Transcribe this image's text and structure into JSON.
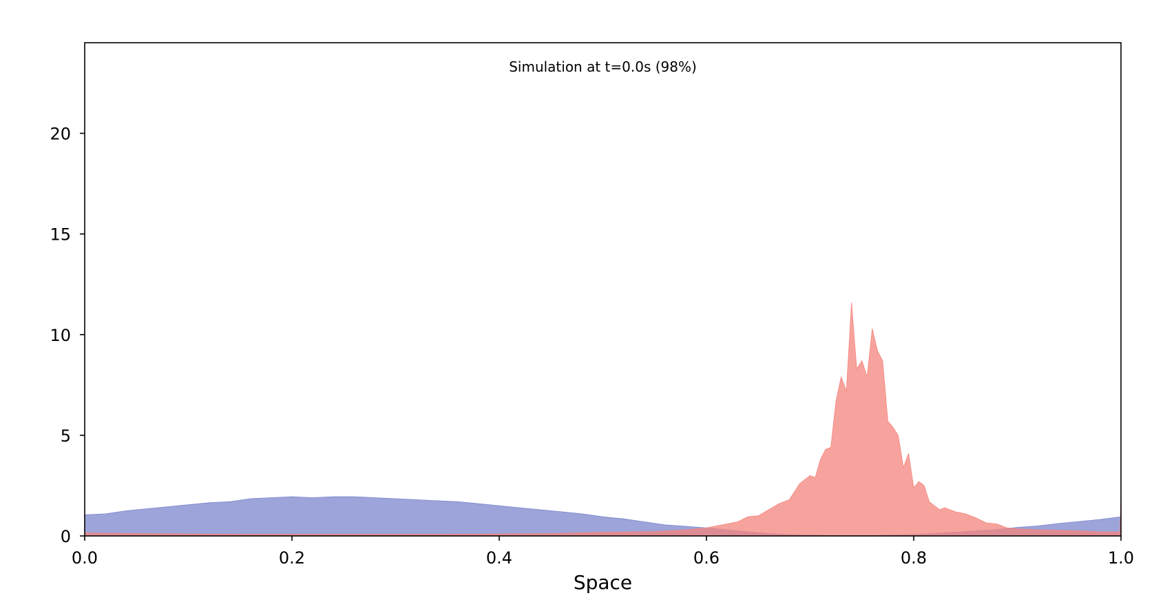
{
  "chart_data": {
    "type": "area",
    "title": "Simulation at t=0.0s (98%)",
    "xlabel": "Space",
    "ylabel": "",
    "xlim": [
      0.0,
      1.0
    ],
    "ylim": [
      0,
      24.5
    ],
    "xticks": [
      0.0,
      0.2,
      0.4,
      0.6,
      0.8,
      1.0
    ],
    "xtick_labels": [
      "0.0",
      "0.2",
      "0.4",
      "0.6",
      "0.8",
      "1.0"
    ],
    "yticks": [
      0,
      5,
      10,
      15,
      20
    ],
    "ytick_labels": [
      "0",
      "5",
      "10",
      "15",
      "20"
    ],
    "grid": false,
    "legend": "none",
    "series": [
      {
        "color": "#7b86cc",
        "fill_opacity": 0.75,
        "points": [
          [
            0.0,
            1.05
          ],
          [
            0.02,
            1.1
          ],
          [
            0.04,
            1.25
          ],
          [
            0.06,
            1.35
          ],
          [
            0.08,
            1.45
          ],
          [
            0.1,
            1.55
          ],
          [
            0.12,
            1.65
          ],
          [
            0.14,
            1.7
          ],
          [
            0.16,
            1.85
          ],
          [
            0.18,
            1.9
          ],
          [
            0.2,
            1.95
          ],
          [
            0.22,
            1.9
          ],
          [
            0.24,
            1.95
          ],
          [
            0.26,
            1.95
          ],
          [
            0.28,
            1.9
          ],
          [
            0.3,
            1.85
          ],
          [
            0.32,
            1.8
          ],
          [
            0.34,
            1.75
          ],
          [
            0.36,
            1.7
          ],
          [
            0.38,
            1.6
          ],
          [
            0.4,
            1.5
          ],
          [
            0.42,
            1.4
          ],
          [
            0.44,
            1.3
          ],
          [
            0.46,
            1.2
          ],
          [
            0.48,
            1.1
          ],
          [
            0.5,
            0.95
          ],
          [
            0.52,
            0.85
          ],
          [
            0.54,
            0.7
          ],
          [
            0.56,
            0.55
          ],
          [
            0.58,
            0.48
          ],
          [
            0.6,
            0.4
          ],
          [
            0.62,
            0.3
          ],
          [
            0.64,
            0.2
          ],
          [
            0.66,
            0.12
          ],
          [
            0.68,
            0.07
          ],
          [
            0.7,
            0.04
          ],
          [
            0.72,
            0.02
          ],
          [
            0.74,
            0.02
          ],
          [
            0.76,
            0.02
          ],
          [
            0.78,
            0.04
          ],
          [
            0.8,
            0.07
          ],
          [
            0.82,
            0.12
          ],
          [
            0.84,
            0.18
          ],
          [
            0.86,
            0.25
          ],
          [
            0.88,
            0.32
          ],
          [
            0.9,
            0.42
          ],
          [
            0.92,
            0.5
          ],
          [
            0.94,
            0.62
          ],
          [
            0.96,
            0.72
          ],
          [
            0.98,
            0.82
          ],
          [
            1.0,
            0.95
          ]
        ]
      },
      {
        "color": "#f4847c",
        "fill_opacity": 0.75,
        "points": [
          [
            0.0,
            0.15
          ],
          [
            0.05,
            0.12
          ],
          [
            0.1,
            0.1
          ],
          [
            0.15,
            0.08
          ],
          [
            0.2,
            0.08
          ],
          [
            0.25,
            0.08
          ],
          [
            0.3,
            0.08
          ],
          [
            0.35,
            0.08
          ],
          [
            0.4,
            0.1
          ],
          [
            0.45,
            0.12
          ],
          [
            0.5,
            0.18
          ],
          [
            0.55,
            0.22
          ],
          [
            0.58,
            0.3
          ],
          [
            0.6,
            0.4
          ],
          [
            0.62,
            0.6
          ],
          [
            0.63,
            0.7
          ],
          [
            0.64,
            0.95
          ],
          [
            0.65,
            1.0
          ],
          [
            0.66,
            1.3
          ],
          [
            0.67,
            1.6
          ],
          [
            0.68,
            1.8
          ],
          [
            0.69,
            2.6
          ],
          [
            0.7,
            3.0
          ],
          [
            0.705,
            2.9
          ],
          [
            0.71,
            3.8
          ],
          [
            0.715,
            4.3
          ],
          [
            0.72,
            4.4
          ],
          [
            0.725,
            6.7
          ],
          [
            0.73,
            7.9
          ],
          [
            0.735,
            7.2
          ],
          [
            0.74,
            11.6
          ],
          [
            0.745,
            8.3
          ],
          [
            0.75,
            8.7
          ],
          [
            0.755,
            7.9
          ],
          [
            0.76,
            10.3
          ],
          [
            0.765,
            9.2
          ],
          [
            0.77,
            8.7
          ],
          [
            0.775,
            5.7
          ],
          [
            0.78,
            5.4
          ],
          [
            0.785,
            5.0
          ],
          [
            0.79,
            3.4
          ],
          [
            0.795,
            4.1
          ],
          [
            0.8,
            2.4
          ],
          [
            0.805,
            2.7
          ],
          [
            0.81,
            2.5
          ],
          [
            0.815,
            1.7
          ],
          [
            0.82,
            1.5
          ],
          [
            0.825,
            1.3
          ],
          [
            0.83,
            1.4
          ],
          [
            0.84,
            1.2
          ],
          [
            0.85,
            1.1
          ],
          [
            0.86,
            0.9
          ],
          [
            0.87,
            0.65
          ],
          [
            0.88,
            0.6
          ],
          [
            0.89,
            0.4
          ],
          [
            0.9,
            0.35
          ],
          [
            0.92,
            0.3
          ],
          [
            0.94,
            0.28
          ],
          [
            0.96,
            0.25
          ],
          [
            0.98,
            0.2
          ],
          [
            0.999,
            0.2
          ],
          [
            1.0,
            2.1
          ]
        ]
      }
    ]
  }
}
